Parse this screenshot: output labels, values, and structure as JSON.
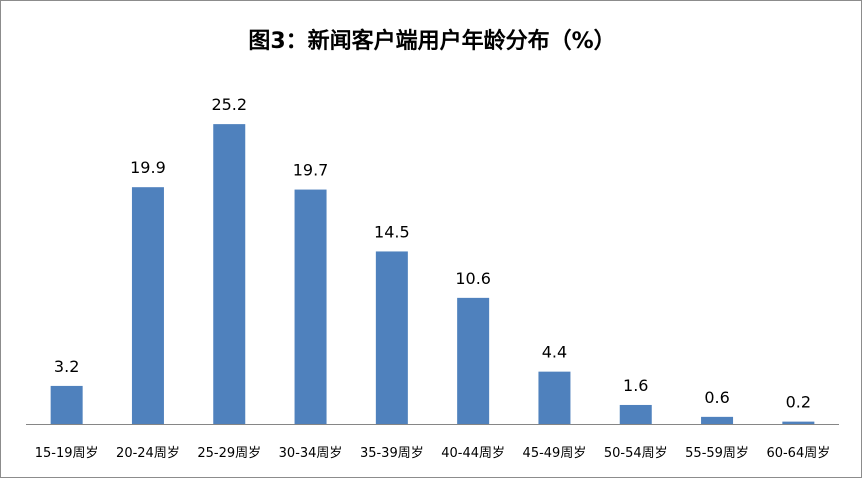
{
  "chart_data": {
    "type": "bar",
    "title": "图3：新闻客户端用户年龄分布（%）",
    "categories": [
      "15-19周岁",
      "20-24周岁",
      "25-29周岁",
      "30-34周岁",
      "35-39周岁",
      "40-44周岁",
      "45-49周岁",
      "50-54周岁",
      "55-59周岁",
      "60-64周岁"
    ],
    "values": [
      3.2,
      19.9,
      25.2,
      19.7,
      14.5,
      10.6,
      4.4,
      1.6,
      0.6,
      0.2
    ],
    "value_labels": [
      "3.2",
      "19.9",
      "25.2",
      "19.7",
      "14.5",
      "10.6",
      "4.4",
      "1.6",
      "0.6",
      "0.2"
    ],
    "ylim": [
      0,
      30
    ],
    "bar_color": "#4f81bd",
    "axis_color": "#868686",
    "grid": false,
    "legend": "none"
  }
}
